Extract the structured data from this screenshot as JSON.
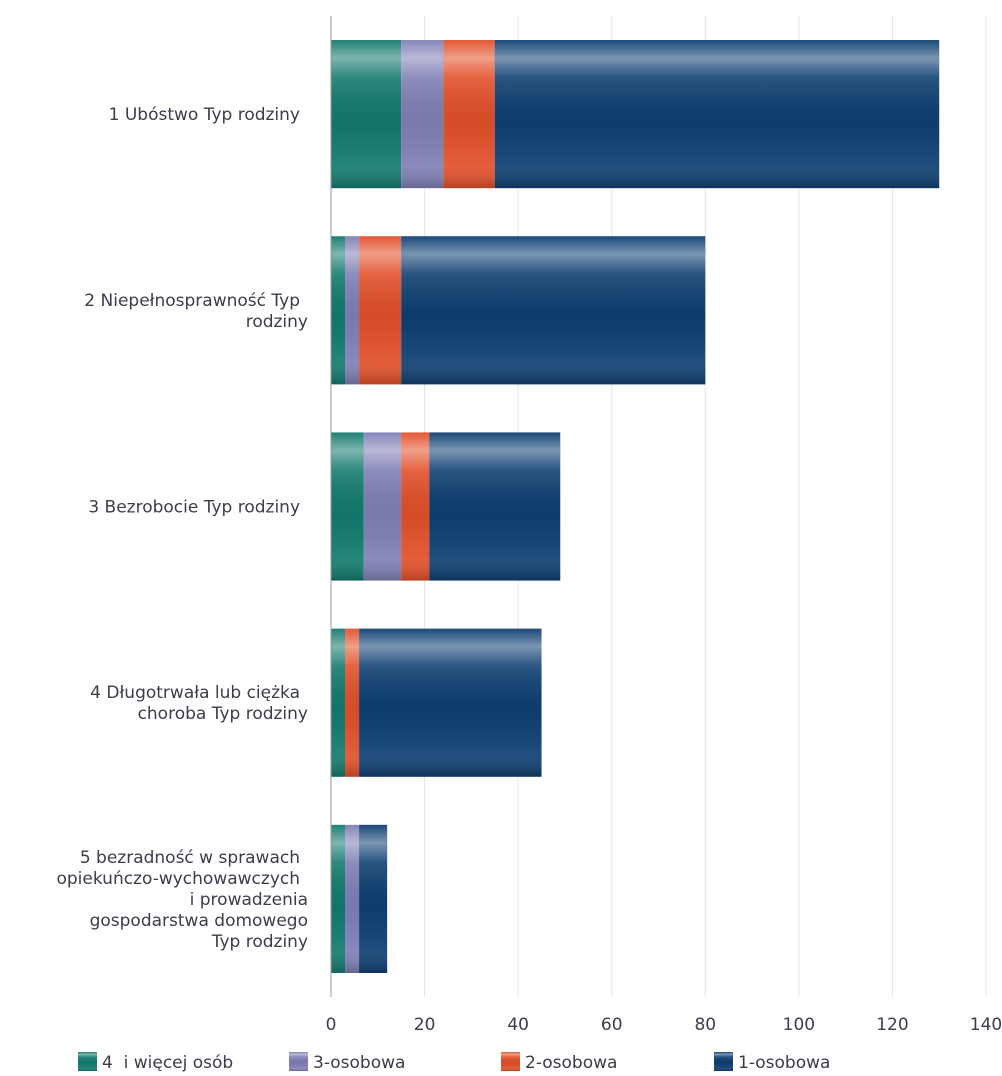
{
  "chart_data": {
    "type": "bar",
    "orientation": "horizontal",
    "stacked": true,
    "categories": [
      [
        "1 Ubóstwo Typ rodziny"
      ],
      [
        "2 Niepełnosprawność Typ",
        "rodziny"
      ],
      [
        "3 Bezrobocie Typ rodziny"
      ],
      [
        "4 Długotrwała lub ciężka",
        "choroba Typ rodziny"
      ],
      [
        "5 bezradność w sprawach",
        "opiekuńczo-wychowawczych",
        "i prowadzenia",
        "gospodarstwa domowego",
        "Typ rodziny"
      ]
    ],
    "series": [
      {
        "name": "4  i więcej osób",
        "values": [
          15,
          3,
          7,
          3,
          3
        ],
        "color": "#137a6e"
      },
      {
        "name": "3-osobowa",
        "values": [
          9,
          3,
          8,
          0,
          3
        ],
        "color": "#7f7fb5"
      },
      {
        "name": "2-osobowa",
        "values": [
          11,
          9,
          6,
          3,
          0
        ],
        "color": "#e2502a"
      },
      {
        "name": "1-osobowa",
        "values": [
          95,
          65,
          28,
          39,
          6
        ],
        "color": "#0f3f72"
      }
    ],
    "x_ticks": [
      "0",
      "20",
      "40",
      "60",
      "80",
      "100",
      "120",
      "140"
    ],
    "xlim": [
      0,
      140
    ],
    "grid": true,
    "legend_position": "bottom"
  }
}
